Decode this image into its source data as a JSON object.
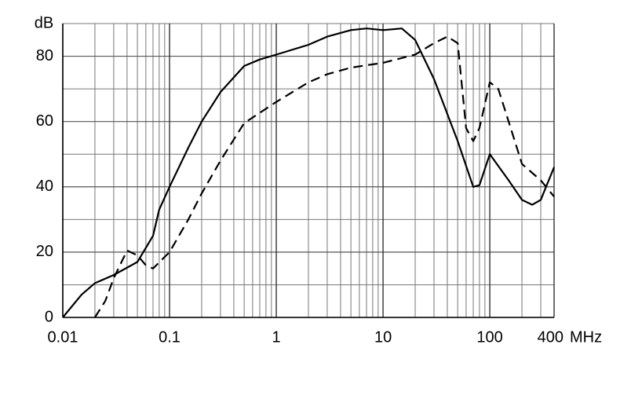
{
  "chart_data": {
    "type": "line",
    "ylabel": "dB",
    "xlabel": "MHz",
    "xscale": "log",
    "xlim": [
      0.01,
      400
    ],
    "ylim": [
      0,
      90
    ],
    "xticks": [
      {
        "value": 0.01,
        "label": "0.01"
      },
      {
        "value": 0.1,
        "label": "0.1"
      },
      1,
      10,
      100,
      400
    ],
    "xminor": [
      0.02,
      0.03,
      0.04,
      0.05,
      0.06,
      0.07,
      0.08,
      0.09,
      0.2,
      0.3,
      0.4,
      0.5,
      0.6,
      0.7,
      0.8,
      0.9,
      2,
      3,
      4,
      5,
      6,
      7,
      8,
      9,
      20,
      30,
      40,
      50,
      60,
      70,
      80,
      90,
      200,
      300
    ],
    "yticks": [
      0,
      20,
      40,
      60,
      80
    ],
    "yminor": [
      10,
      30,
      50,
      70,
      90
    ],
    "grid": true,
    "series": [
      {
        "color": "#000000",
        "line_style": "solid",
        "x": [
          0.01,
          0.015,
          0.02,
          0.03,
          0.05,
          0.07,
          0.08,
          0.1,
          0.15,
          0.2,
          0.3,
          0.5,
          0.7,
          1,
          2,
          3,
          5,
          7,
          10,
          15,
          20,
          30,
          50,
          70,
          80,
          100,
          150,
          200,
          250,
          300,
          400
        ],
        "values": [
          0,
          7,
          10.5,
          13,
          17,
          25,
          33,
          40,
          52,
          60,
          69,
          77,
          79,
          80.5,
          83.5,
          86,
          88,
          88.5,
          88,
          88.5,
          85,
          73,
          54,
          40,
          40.5,
          50,
          42,
          36,
          34.5,
          36,
          46
        ]
      },
      {
        "color": "#000000",
        "line_style": "dashed",
        "x": [
          0.02,
          0.025,
          0.03,
          0.04,
          0.05,
          0.06,
          0.07,
          0.1,
          0.15,
          0.2,
          0.3,
          0.5,
          1,
          2,
          3,
          5,
          10,
          20,
          30,
          40,
          50,
          60,
          70,
          80,
          100,
          120,
          150,
          200,
          300,
          400
        ],
        "values": [
          0,
          5,
          12,
          20.5,
          19,
          16,
          15,
          20,
          30,
          38,
          48,
          59.5,
          66,
          72,
          74.5,
          76.5,
          78,
          80.5,
          84,
          86,
          84,
          58,
          54,
          58,
          72,
          70,
          60,
          47,
          42,
          37
        ]
      }
    ]
  }
}
